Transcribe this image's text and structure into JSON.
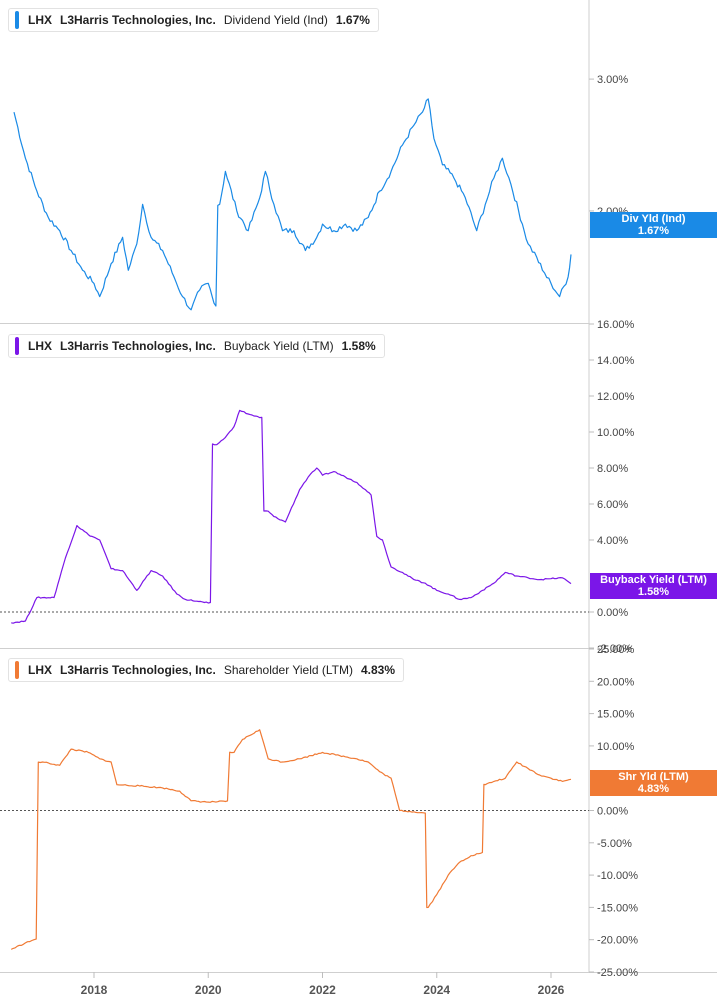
{
  "panels": [
    {
      "ticker": "LHX",
      "company": "L3Harris Technologies, Inc.",
      "metric": "Dividend Yield (Ind)",
      "value": "1.67%",
      "tag_line1": "Div Yld (Ind)",
      "tag_line2": "1.67%",
      "color": "#1a8ae6",
      "ticks": [
        "3.00%",
        "2.00%"
      ],
      "tick_values": [
        3.0,
        2.0
      ]
    },
    {
      "ticker": "LHX",
      "company": "L3Harris Technologies, Inc.",
      "metric": "Buyback Yield (LTM)",
      "value": "1.58%",
      "tag_line1": "Buyback Yield (LTM)",
      "tag_line2": "1.58%",
      "color": "#7b16e8",
      "ticks": [
        "16.00%",
        "14.00%",
        "12.00%",
        "10.00%",
        "8.00%",
        "6.00%",
        "4.00%",
        "0.00%",
        "-2.00%"
      ],
      "tick_values": [
        16,
        14,
        12,
        10,
        8,
        6,
        4,
        0,
        -2
      ]
    },
    {
      "ticker": "LHX",
      "company": "L3Harris Technologies, Inc.",
      "metric": "Shareholder Yield (LTM)",
      "value": "4.83%",
      "tag_line1": "Shr Yld (LTM)",
      "tag_line2": "4.83%",
      "color": "#f07a34",
      "ticks": [
        "25.00%",
        "20.00%",
        "15.00%",
        "10.00%",
        "0.00%",
        "-5.00%",
        "-10.00%",
        "-15.00%",
        "-20.00%",
        "-25.00%"
      ],
      "tick_values": [
        25,
        20,
        15,
        10,
        0,
        -5,
        -10,
        -15,
        -20,
        -25
      ]
    }
  ],
  "x_axis": {
    "labels": [
      "2018",
      "2020",
      "2022",
      "2024",
      "2026"
    ],
    "years": [
      2018,
      2020,
      2022,
      2024,
      2026
    ]
  },
  "chart_data": [
    {
      "type": "line",
      "ylabel": "",
      "ylim": [
        1.15,
        3.6
      ],
      "series": [
        {
          "name": "Dividend Yield (Ind)",
          "x": [
            2016.6,
            2016.8,
            2017.0,
            2017.2,
            2017.4,
            2017.6,
            2017.8,
            2018.0,
            2018.1,
            2018.3,
            2018.5,
            2018.6,
            2018.75,
            2018.85,
            2019.0,
            2019.2,
            2019.4,
            2019.55,
            2019.7,
            2019.85,
            2020.0,
            2020.1,
            2020.2,
            2020.3,
            2020.5,
            2020.7,
            2020.9,
            2021.0,
            2021.15,
            2021.3,
            2021.5,
            2021.7,
            2021.9,
            2022.0,
            2022.2,
            2022.4,
            2022.6,
            2022.8,
            2023.0,
            2023.2,
            2023.4,
            2023.6,
            2023.75,
            2023.85,
            2023.95,
            2024.1,
            2024.3,
            2024.5,
            2024.7,
            2024.85,
            2025.0,
            2025.15,
            2025.3,
            2025.5,
            2025.6,
            2025.75,
            2025.85,
            2026.0,
            2026.15,
            2026.3,
            2026.35
          ],
          "y": [
            2.75,
            2.4,
            2.15,
            1.95,
            1.85,
            1.7,
            1.55,
            1.45,
            1.35,
            1.6,
            1.8,
            1.55,
            1.75,
            2.05,
            1.8,
            1.7,
            1.5,
            1.35,
            1.25,
            1.4,
            1.45,
            1.3,
            2.05,
            2.3,
            2.0,
            1.85,
            2.1,
            2.3,
            2.05,
            1.85,
            1.85,
            1.7,
            1.8,
            1.9,
            1.85,
            1.9,
            1.85,
            1.95,
            2.15,
            2.3,
            2.5,
            2.65,
            2.75,
            2.85,
            2.55,
            2.35,
            2.25,
            2.1,
            1.85,
            2.05,
            2.25,
            2.4,
            2.2,
            1.9,
            1.75,
            1.65,
            1.55,
            1.45,
            1.35,
            1.5,
            1.67
          ]
        }
      ]
    },
    {
      "type": "line",
      "ylabel": "",
      "ylim": [
        -2,
        16
      ],
      "series": [
        {
          "name": "Buyback Yield (LTM)",
          "x": [
            2016.55,
            2016.8,
            2017.0,
            2017.3,
            2017.5,
            2017.7,
            2017.9,
            2018.1,
            2018.3,
            2018.5,
            2018.75,
            2019.0,
            2019.2,
            2019.45,
            2019.6,
            2019.8,
            2020.0,
            2020.15,
            2020.3,
            2020.45,
            2020.55,
            2020.7,
            2020.9,
            2021.05,
            2021.15,
            2021.35,
            2021.6,
            2021.75,
            2021.9,
            2022.0,
            2022.2,
            2022.4,
            2022.6,
            2022.75,
            2022.85,
            2022.95,
            2023.05,
            2023.2,
            2023.4,
            2023.6,
            2023.8,
            2024.0,
            2024.2,
            2024.4,
            2024.6,
            2024.8,
            2025.0,
            2025.2,
            2025.4,
            2025.6,
            2025.8,
            2026.0,
            2026.2,
            2026.35
          ],
          "y": [
            -0.6,
            -0.5,
            0.8,
            0.8,
            3.0,
            4.8,
            4.3,
            4.0,
            2.4,
            2.3,
            1.2,
            2.3,
            2.0,
            1.0,
            0.7,
            0.6,
            0.5,
            9.3,
            9.7,
            10.3,
            11.2,
            11.0,
            10.8,
            5.6,
            5.3,
            5.0,
            6.8,
            7.5,
            8.0,
            7.6,
            7.8,
            7.5,
            7.2,
            6.8,
            6.5,
            4.2,
            4.0,
            2.5,
            2.2,
            1.8,
            1.6,
            1.2,
            1.0,
            0.7,
            0.8,
            1.2,
            1.6,
            2.2,
            2.0,
            1.9,
            1.8,
            1.85,
            1.9,
            1.58
          ]
        }
      ]
    },
    {
      "type": "line",
      "ylabel": "",
      "ylim": [
        -25,
        25
      ],
      "series": [
        {
          "name": "Shareholder Yield (LTM)",
          "x": [
            2016.55,
            2016.8,
            2016.95,
            2017.1,
            2017.4,
            2017.6,
            2017.9,
            2018.1,
            2018.3,
            2018.4,
            2018.8,
            2019.2,
            2019.5,
            2019.7,
            2020.0,
            2020.3,
            2020.45,
            2020.6,
            2020.9,
            2021.05,
            2021.3,
            2021.6,
            2021.8,
            2022.0,
            2022.3,
            2022.6,
            2022.8,
            2023.0,
            2023.2,
            2023.35,
            2023.6,
            2023.8,
            2023.85,
            2024.0,
            2024.2,
            2024.4,
            2024.6,
            2024.8,
            2024.85,
            2025.0,
            2025.2,
            2025.4,
            2025.6,
            2025.8,
            2026.0,
            2026.2,
            2026.35
          ],
          "y": [
            -21.5,
            -20.5,
            -20.0,
            7.5,
            7.0,
            9.5,
            9.0,
            8.0,
            7.5,
            4.0,
            3.8,
            3.5,
            3.0,
            1.5,
            1.3,
            1.4,
            9.0,
            11.0,
            12.5,
            8.0,
            7.5,
            8.0,
            8.5,
            9.0,
            8.5,
            8.0,
            7.5,
            6.0,
            5.0,
            0.0,
            -0.2,
            -0.4,
            -15.0,
            -13.0,
            -10.0,
            -8.0,
            -7.0,
            -6.5,
            4.0,
            4.5,
            5.0,
            7.5,
            6.5,
            5.5,
            5.0,
            4.5,
            4.83
          ]
        }
      ]
    }
  ]
}
